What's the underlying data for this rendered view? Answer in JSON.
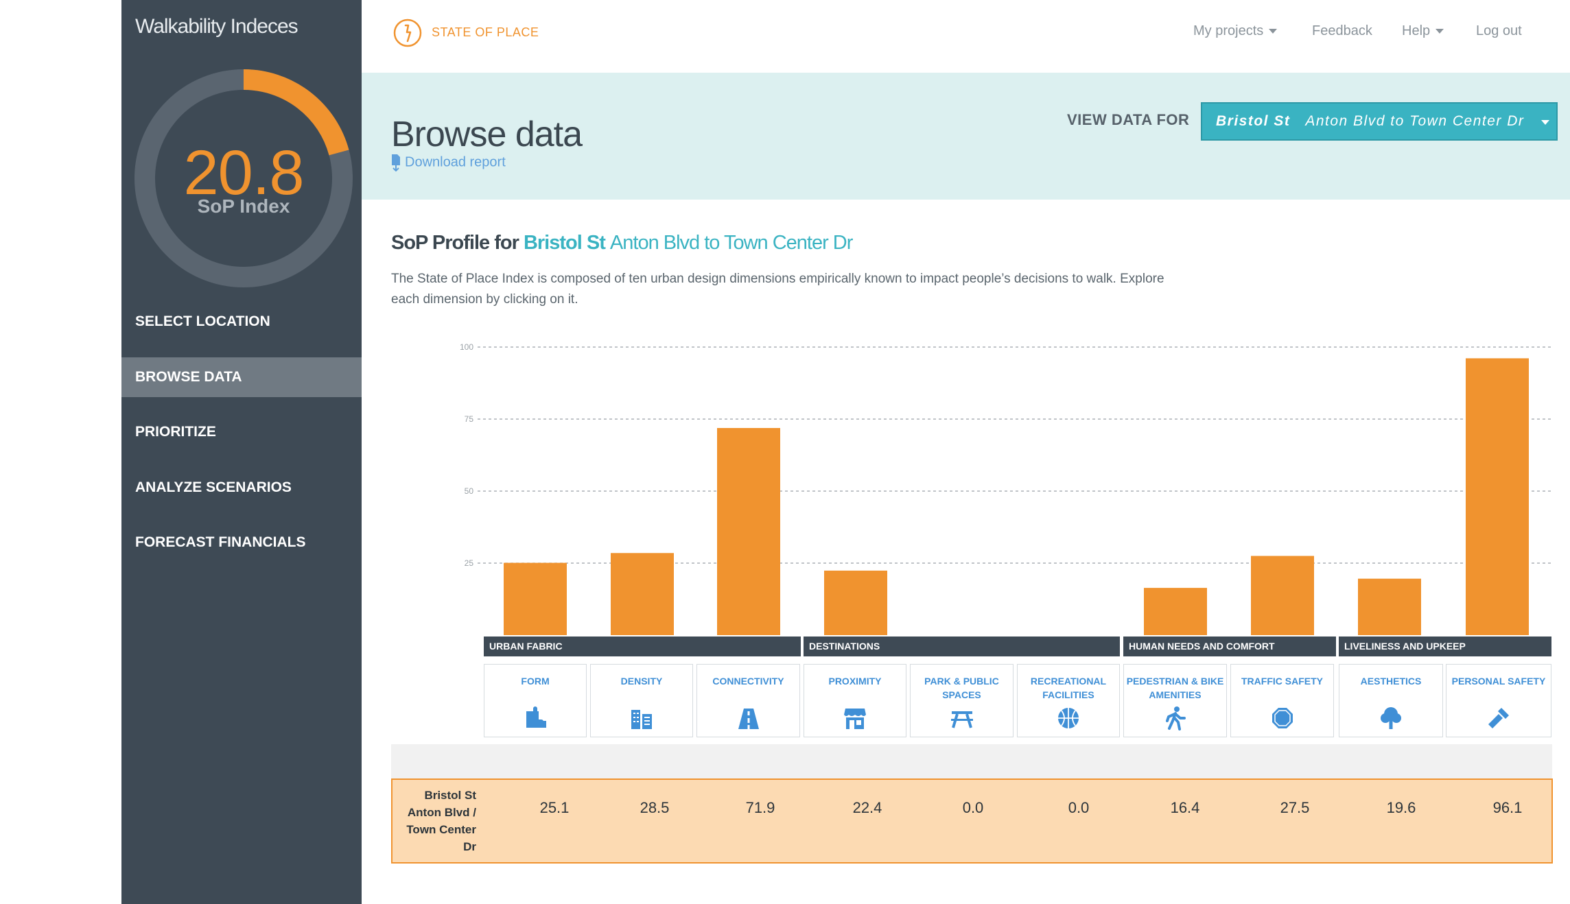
{
  "sidebar": {
    "title": "Walkability Indeces",
    "gauge": {
      "value": "20.8",
      "label": "SoP Index",
      "fraction": 0.208,
      "color": "#f0932f"
    },
    "nav": [
      {
        "label": "SELECT LOCATION"
      },
      {
        "label": "BROWSE DATA",
        "active": true
      },
      {
        "label": "PRIORITIZE"
      },
      {
        "label": "ANALYZE SCENARIOS"
      },
      {
        "label": "FORECAST FINANCIALS"
      }
    ]
  },
  "header": {
    "brand": "STATE OF PLACE",
    "links": {
      "projects": "My projects",
      "feedback": "Feedback",
      "help": "Help",
      "logout": "Log out"
    }
  },
  "banner": {
    "title": "Browse data",
    "download": "Download report",
    "view_label": "VIEW DATA FOR",
    "select": {
      "street": "Bristol St",
      "segment": "Anton Blvd to Town Center Dr"
    }
  },
  "profile": {
    "prefix": "SoP Profile for",
    "street": "Bristol St",
    "segment": "Anton Blvd to Town Center Dr",
    "description": "The State of Place Index is composed of ten urban design dimensions empirically known to impact people’s decisions to walk. Explore each dimension by clicking on it."
  },
  "groups": [
    "URBAN FABRIC",
    "DESTINATIONS",
    "HUMAN NEEDS AND COMFORT",
    "LIVELINESS AND UPKEEP"
  ],
  "dimensions": [
    {
      "label": "FORM",
      "icon": "puzzle-icon"
    },
    {
      "label": "DENSITY",
      "icon": "buildings-icon"
    },
    {
      "label": "CONNECTIVITY",
      "icon": "road-icon"
    },
    {
      "label": "PROXIMITY",
      "icon": "storefront-icon"
    },
    {
      "label": "PARK & PUBLIC SPACES",
      "icon": "picnic-table-icon"
    },
    {
      "label": "RECREATIONAL FACILITIES",
      "icon": "basketball-icon"
    },
    {
      "label": "PEDESTRIAN & BIKE AMENITIES",
      "icon": "walking-person-icon"
    },
    {
      "label": "TRAFFIC SAFETY",
      "icon": "stop-sign-icon"
    },
    {
      "label": "AESTHETICS",
      "icon": "tree-icon"
    },
    {
      "label": "PERSONAL SAFETY",
      "icon": "flashlight-icon"
    }
  ],
  "row": {
    "label": "Bristol St Anton Blvd / Town Center Dr",
    "values": [
      "25.1",
      "28.5",
      "71.9",
      "22.4",
      "0.0",
      "0.0",
      "16.4",
      "27.5",
      "19.6",
      "96.1"
    ]
  },
  "chart_data": {
    "type": "bar",
    "categories": [
      "FORM",
      "DENSITY",
      "CONNECTIVITY",
      "PROXIMITY",
      "PARK & PUBLIC SPACES",
      "RECREATIONAL FACILITIES",
      "PEDESTRIAN & BIKE AMENITIES",
      "TRAFFIC SAFETY",
      "AESTHETICS",
      "PERSONAL SAFETY"
    ],
    "values": [
      25.1,
      28.5,
      71.9,
      22.4,
      0.0,
      0.0,
      16.4,
      27.5,
      19.6,
      96.1
    ],
    "yticks": [
      25,
      50,
      75,
      100
    ],
    "ylim": [
      0,
      100
    ],
    "grid": true,
    "bar_color": "#f0932f"
  }
}
